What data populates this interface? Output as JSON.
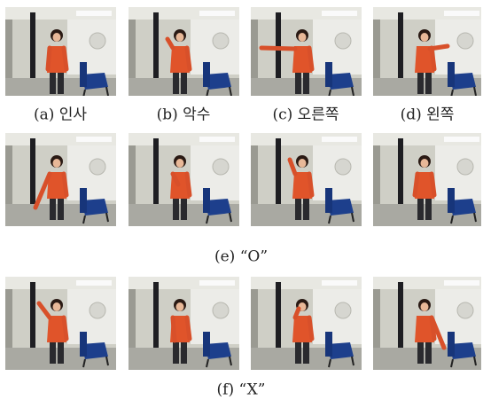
{
  "captions": [
    "(a) 인사",
    "(b) 악수",
    "(c) 오른쪽",
    "(d) 왼쪽",
    "(e) “O”",
    "(f) “X”"
  ]
}
